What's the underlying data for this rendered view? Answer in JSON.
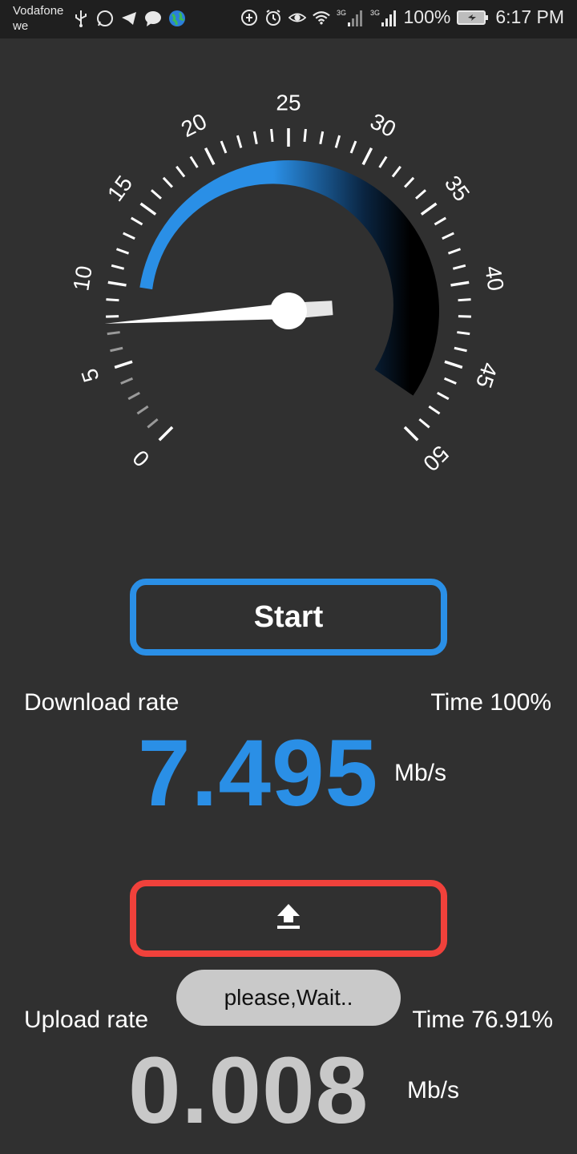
{
  "status_bar": {
    "carrier_line1": "Vodafone",
    "carrier_line2": "we",
    "network_1": "3G",
    "network_2": "3G",
    "battery": "100%",
    "time": "6:17 PM",
    "left_icons": [
      "usb-icon",
      "whatsapp-icon",
      "telegram-icon",
      "chat-icon",
      "globe-icon"
    ],
    "right_icons": [
      "data-saver-icon",
      "alarm-icon",
      "eye-icon",
      "wifi-icon",
      "signal-icon",
      "signal-icon",
      "battery-icon"
    ]
  },
  "gauge": {
    "min": 0,
    "max": 50,
    "tick_labels": [
      "0",
      "5",
      "10",
      "15",
      "20",
      "25",
      "30",
      "35",
      "40",
      "45",
      "50"
    ],
    "needle_value": 7.6,
    "arc_start_value": 10,
    "arc_end_value": 48,
    "colors": {
      "accent": "#2a8fe6",
      "dark": "#000000",
      "tick": "#ffffff"
    }
  },
  "start_button": {
    "label": "Start"
  },
  "download": {
    "label": "Download rate",
    "time_label": "Time 100%",
    "value": "7.495",
    "unit": "Mb/s",
    "color": "#2a8fe6"
  },
  "upload_button": {
    "icon": "upload-icon",
    "color": "#f0413b"
  },
  "toast": {
    "text": "please,Wait.."
  },
  "upload": {
    "label": "Upload rate",
    "time_label": "Time 76.91%",
    "value": "0.008",
    "unit": "Mb/s",
    "color": "#c8c8c8"
  }
}
